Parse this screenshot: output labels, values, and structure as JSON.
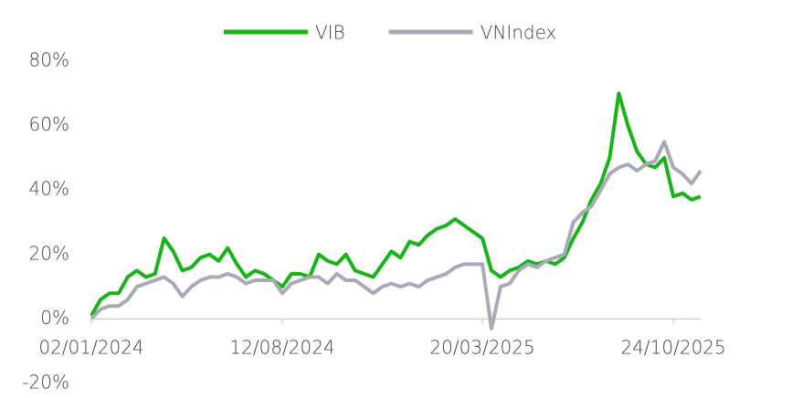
{
  "chart_data": {
    "type": "line",
    "categories": [
      "02/01/2024",
      null,
      null,
      null,
      null,
      null,
      null,
      null,
      null,
      null,
      null,
      null,
      null,
      null,
      null,
      null,
      null,
      null,
      null,
      null,
      null,
      "12/08/2024",
      null,
      null,
      null,
      null,
      null,
      null,
      null,
      null,
      null,
      null,
      null,
      null,
      null,
      null,
      null,
      null,
      null,
      null,
      null,
      null,
      null,
      "20/03/2025",
      null,
      null,
      null,
      null,
      null,
      null,
      null,
      null,
      null,
      null,
      null,
      null,
      null,
      null,
      null,
      null,
      null,
      null,
      null,
      null,
      "24/10/2025",
      null,
      null,
      null
    ],
    "series": [
      {
        "name": "VIB",
        "color": "#17b317",
        "values": [
          1,
          6,
          8,
          8,
          13,
          15,
          13,
          14,
          25,
          21,
          15,
          16,
          19,
          20,
          18,
          22,
          17,
          13,
          15,
          14,
          12,
          10,
          14,
          14,
          13,
          20,
          18,
          17,
          20,
          15,
          14,
          13,
          17,
          21,
          19,
          24,
          23,
          26,
          28,
          29,
          31,
          29,
          27,
          25,
          15,
          13,
          15,
          16,
          18,
          17,
          18,
          17,
          19,
          25,
          30,
          37,
          42,
          50,
          70,
          60,
          52,
          48,
          47,
          50,
          38,
          39,
          37,
          38
        ]
      },
      {
        "name": "VNIndex",
        "color": "#a8aab8",
        "values": [
          0,
          3,
          4,
          4,
          6,
          10,
          11,
          12,
          13,
          11,
          7,
          10,
          12,
          13,
          13,
          14,
          13,
          11,
          12,
          12,
          12,
          8,
          11,
          12,
          13,
          13,
          11,
          14,
          12,
          12,
          10,
          8,
          10,
          11,
          10,
          11,
          10,
          12,
          13,
          14,
          16,
          17,
          17,
          17,
          -3,
          10,
          11,
          15,
          17,
          16,
          18,
          19,
          20,
          30,
          33,
          35,
          40,
          45,
          47,
          48,
          46,
          48,
          49,
          55,
          47,
          45,
          42,
          46
        ]
      }
    ],
    "ylim": [
      -20,
      80
    ],
    "yticks": [
      {
        "value": -20,
        "label": "-20%"
      },
      {
        "value": 0,
        "label": "0%"
      },
      {
        "value": 20,
        "label": "20%"
      },
      {
        "value": 40,
        "label": "40%"
      },
      {
        "value": 60,
        "label": "60%"
      },
      {
        "value": 80,
        "label": "80%"
      }
    ],
    "legend": "top"
  }
}
